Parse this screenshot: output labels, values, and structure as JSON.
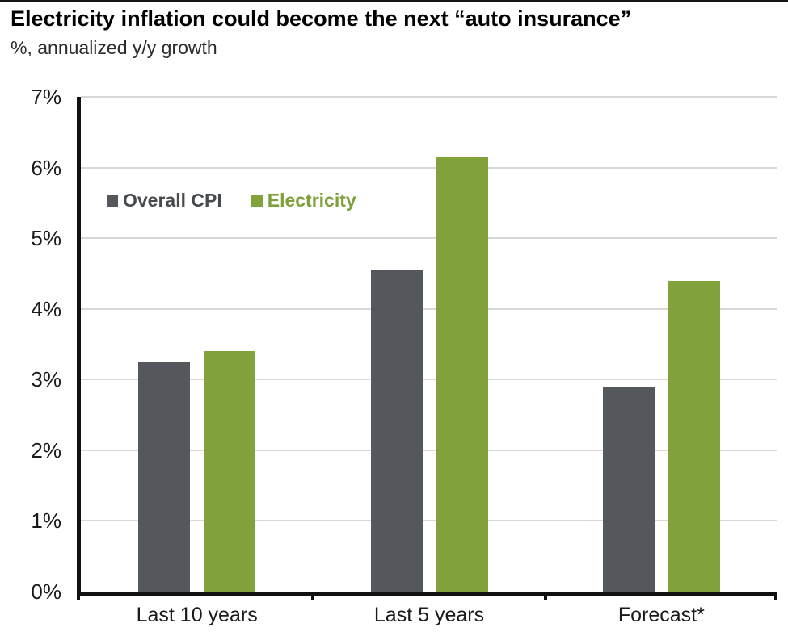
{
  "header": {
    "title": "Electricity inflation could become the next “auto insurance”",
    "subtitle": "%, annualized y/y growth"
  },
  "chart_data": {
    "type": "bar",
    "title": "Electricity inflation could become the next “auto insurance”",
    "subtitle": "%, annualized y/y growth",
    "categories": [
      "Last 10 years",
      "Last 5 years",
      "Forecast*"
    ],
    "series": [
      {
        "name": "Overall CPI",
        "color": "#54585C",
        "label_color": "#46494D",
        "values": [
          3.25,
          4.55,
          2.9
        ]
      },
      {
        "name": "Electricity",
        "color": "#82A23B",
        "label_color": "#7EA03A",
        "values": [
          3.4,
          6.15,
          4.4
        ]
      }
    ],
    "xlabel": "",
    "ylabel": "%, annualized y/y growth",
    "ylim": [
      0,
      7
    ],
    "yticks": [
      "0%",
      "1%",
      "2%",
      "3%",
      "4%",
      "5%",
      "6%",
      "7%"
    ],
    "grid": true,
    "gridline_color": "#D8D8D8",
    "axis_color": "#111111",
    "legend_position": "inside-top-left"
  }
}
